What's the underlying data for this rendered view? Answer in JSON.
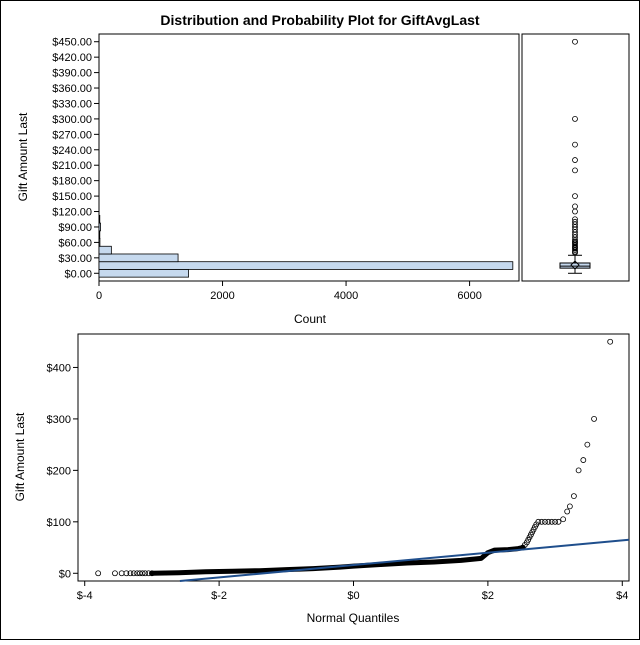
{
  "chart_data": [
    {
      "type": "bar",
      "orientation": "horizontal",
      "title": "Distribution and Probability Plot for GiftAvgLast",
      "xlabel": "Count",
      "ylabel": "Gift Amount Last",
      "xlim": [
        0,
        6800
      ],
      "ylim": [
        -15,
        465
      ],
      "x_ticks": [
        "0",
        "2000",
        "4000",
        "6000"
      ],
      "y_ticks": [
        "$0.00",
        "$30.00",
        "$60.00",
        "$90.00",
        "$120.00",
        "$150.00",
        "$180.00",
        "$210.00",
        "$240.00",
        "$270.00",
        "$300.00",
        "$330.00",
        "$360.00",
        "$390.00",
        "$420.00",
        "$450.00"
      ],
      "bin_width": 15,
      "bin_centers": [
        0,
        15,
        30,
        45,
        60,
        75,
        90,
        105
      ],
      "values": [
        1450,
        6700,
        1280,
        200,
        15,
        10,
        25,
        5
      ],
      "bar_color": "#c6d9ee"
    },
    {
      "type": "box",
      "ylim": [
        -15,
        465
      ],
      "q1": 10,
      "median": 14,
      "q3": 20,
      "mean": 16,
      "whisker_low": 0,
      "whisker_high": 35,
      "outliers": [
        40,
        42,
        45,
        48,
        50,
        52,
        55,
        58,
        60,
        62,
        65,
        70,
        75,
        80,
        85,
        90,
        95,
        100,
        105,
        120,
        130,
        150,
        200,
        220,
        250,
        300,
        450
      ]
    },
    {
      "type": "scatter",
      "xlabel": "Normal Quantiles",
      "ylabel": "Gift Amount Last",
      "xlim": [
        -4.1,
        4.1
      ],
      "ylim": [
        -15,
        465
      ],
      "x_ticks": [
        "$-4",
        "$-2",
        "$0",
        "$2",
        "$4"
      ],
      "y_ticks": [
        "$0",
        "$100",
        "$200",
        "$300",
        "$400"
      ],
      "reference_line": {
        "intercept": 16,
        "slope": 12
      },
      "line_color": "#1f4e8c",
      "points": [
        [
          -3.8,
          0
        ],
        [
          -3.55,
          0
        ],
        [
          -3.45,
          0
        ],
        [
          -3.38,
          0
        ],
        [
          -3.32,
          0
        ],
        [
          -3.27,
          0
        ],
        [
          -3.22,
          0
        ],
        [
          -3.18,
          0
        ],
        [
          -3.14,
          0
        ],
        [
          -3.1,
          0
        ],
        [
          -3.05,
          0
        ],
        [
          -3.0,
          0
        ],
        [
          2.52,
          50
        ],
        [
          2.55,
          55
        ],
        [
          2.58,
          60
        ],
        [
          2.6,
          65
        ],
        [
          2.62,
          70
        ],
        [
          2.64,
          75
        ],
        [
          2.66,
          80
        ],
        [
          2.68,
          85
        ],
        [
          2.7,
          90
        ],
        [
          2.72,
          95
        ],
        [
          2.75,
          100
        ],
        [
          2.8,
          100
        ],
        [
          2.85,
          100
        ],
        [
          2.9,
          100
        ],
        [
          2.95,
          100
        ],
        [
          3.0,
          100
        ],
        [
          3.05,
          100
        ],
        [
          3.12,
          105
        ],
        [
          3.18,
          120
        ],
        [
          3.22,
          130
        ],
        [
          3.28,
          150
        ],
        [
          3.35,
          200
        ],
        [
          3.42,
          220
        ],
        [
          3.48,
          250
        ],
        [
          3.58,
          300
        ],
        [
          3.82,
          450
        ]
      ],
      "curve": [
        [
          -3.0,
          0
        ],
        [
          -2.6,
          1
        ],
        [
          -2.2,
          3
        ],
        [
          -1.8,
          4
        ],
        [
          -1.4,
          5
        ],
        [
          -1.0,
          7
        ],
        [
          -0.6,
          9
        ],
        [
          -0.2,
          12
        ],
        [
          0.0,
          14
        ],
        [
          0.4,
          17
        ],
        [
          0.8,
          20
        ],
        [
          1.2,
          22
        ],
        [
          1.6,
          25
        ],
        [
          1.9,
          29
        ],
        [
          2.0,
          40
        ],
        [
          2.1,
          45
        ],
        [
          2.3,
          46
        ],
        [
          2.45,
          48
        ],
        [
          2.52,
          50
        ]
      ],
      "point_color": "#000000"
    }
  ]
}
